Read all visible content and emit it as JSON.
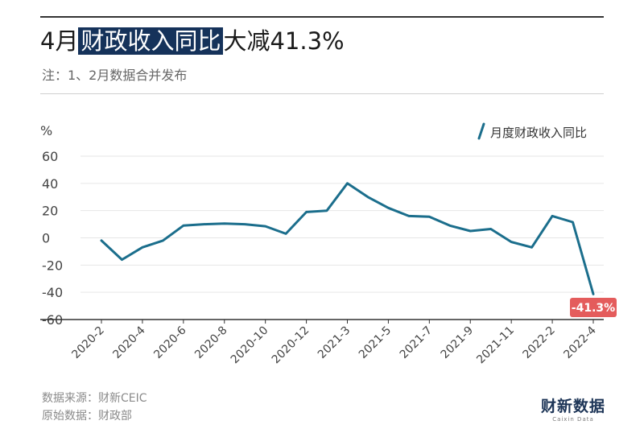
{
  "header": {
    "title_prefix": "4月",
    "title_highlight": "财政收入同比",
    "title_suffix": "大减41.3%",
    "note": "注：1、2月数据合并发布"
  },
  "footer": {
    "source": "数据来源：财新CEIC",
    "original": "原始数据：财政部",
    "logo": "财新数据"
  },
  "colors": {
    "line": "#1b6e8c",
    "highlight_bg": "#15325a",
    "callout": "#e45c5c",
    "grid": "#e6e6e6"
  },
  "chart_data": {
    "type": "line",
    "title": "4月财政收入同比大减41.3%",
    "ylabel": "%",
    "xlabel": "",
    "ylim": [
      -60,
      60
    ],
    "yticks": [
      60,
      40,
      20,
      0,
      -20,
      -40,
      -60
    ],
    "grid": true,
    "legend_position": "top-right",
    "x": [
      "2020-2",
      "2020-3",
      "2020-4",
      "2020-5",
      "2020-6",
      "2020-7",
      "2020-8",
      "2020-9",
      "2020-10",
      "2020-11",
      "2020-12",
      "2021-1",
      "2021-3",
      "2021-4",
      "2021-5",
      "2021-6",
      "2021-7",
      "2021-8",
      "2021-9",
      "2021-10",
      "2021-11",
      "2021-12",
      "2022-2",
      "2022-3",
      "2022-4"
    ],
    "xtick_labels": [
      "2020-2",
      "2020-4",
      "2020-6",
      "2020-8",
      "2020-10",
      "2020-12",
      "2021-3",
      "2021-5",
      "2021-7",
      "2021-9",
      "2021-11",
      "2022-2",
      "2022-4"
    ],
    "series": [
      {
        "name": "月度财政收入同比",
        "values": [
          -2,
          -16,
          -7,
          -2,
          9,
          10,
          10.5,
          10,
          8.5,
          3,
          19,
          20,
          40,
          30,
          22,
          16,
          15.5,
          9,
          5,
          6.5,
          -3,
          -7,
          16,
          11.5,
          -41.3
        ]
      }
    ],
    "annotations": [
      {
        "x": "2022-4",
        "label": "-41.3%"
      }
    ]
  }
}
